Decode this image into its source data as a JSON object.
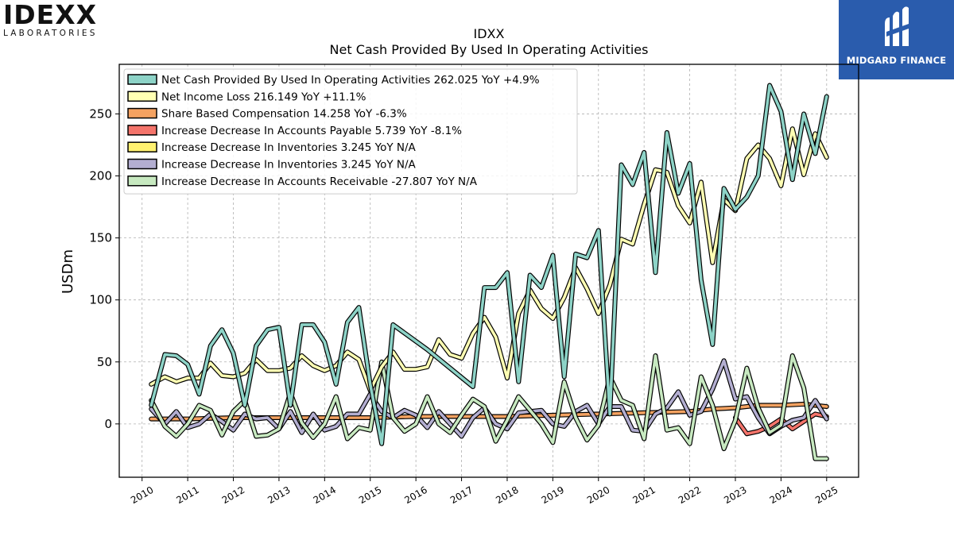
{
  "logos": {
    "left_top": "IDEXX",
    "left_bottom": "LABORATORIES",
    "right_brand": "MIDGARD FINANCE"
  },
  "chart_data": {
    "type": "line",
    "title": "IDXX",
    "subtitle": "Net Cash Provided By Used In Operating Activities",
    "xlabel": "",
    "ylabel": "USDm",
    "xlim": [
      2009.5,
      2025.7
    ],
    "ylim": [
      -43,
      290
    ],
    "x_ticks": [
      2010,
      2011,
      2012,
      2013,
      2014,
      2015,
      2016,
      2017,
      2018,
      2019,
      2020,
      2021,
      2022,
      2023,
      2024,
      2025
    ],
    "x_tick_labels": [
      "2010",
      "2011",
      "2012",
      "2013",
      "2014",
      "2015",
      "2016",
      "2017",
      "2018",
      "2019",
      "2020",
      "2021",
      "2022",
      "2023",
      "2024",
      "2025"
    ],
    "y_ticks": [
      0,
      50,
      100,
      150,
      200,
      250
    ],
    "y_tick_labels": [
      "0",
      "50",
      "100",
      "150",
      "200",
      "250"
    ],
    "grid": true,
    "legend_position": "top-left",
    "series": [
      {
        "name": "Net Cash Provided By Used In Operating Activities",
        "legend_label": "Net Cash Provided By Used In Operating Activities  262.025 YoY +4.9%",
        "color": "#8dd3c7",
        "points": [
          [
            2010.2,
            15
          ],
          [
            2010.5,
            56
          ],
          [
            2010.75,
            55
          ],
          [
            2011.0,
            48
          ],
          [
            2011.25,
            24
          ],
          [
            2011.5,
            63
          ],
          [
            2011.75,
            76
          ],
          [
            2012.0,
            57
          ],
          [
            2012.25,
            15
          ],
          [
            2012.5,
            63
          ],
          [
            2012.75,
            76
          ],
          [
            2013.0,
            78
          ],
          [
            2013.25,
            15
          ],
          [
            2013.5,
            80
          ],
          [
            2013.75,
            80
          ],
          [
            2014.0,
            66
          ],
          [
            2014.25,
            32
          ],
          [
            2014.5,
            82
          ],
          [
            2014.75,
            94
          ],
          [
            2015.0,
            32
          ],
          [
            2015.25,
            -16
          ],
          [
            2015.5,
            80
          ],
          [
            2016.25,
            60
          ],
          [
            2017.25,
            30
          ],
          [
            2017.5,
            110
          ],
          [
            2017.75,
            110
          ],
          [
            2018.0,
            122
          ],
          [
            2018.25,
            34
          ],
          [
            2018.5,
            120
          ],
          [
            2018.75,
            110
          ],
          [
            2019.0,
            136
          ],
          [
            2019.25,
            38
          ],
          [
            2019.5,
            137
          ],
          [
            2019.75,
            134
          ],
          [
            2020.0,
            156
          ],
          [
            2020.25,
            8
          ],
          [
            2020.5,
            209
          ],
          [
            2020.75,
            193
          ],
          [
            2021.0,
            219
          ],
          [
            2021.25,
            122
          ],
          [
            2021.5,
            235
          ],
          [
            2021.75,
            186
          ],
          [
            2022.0,
            210
          ],
          [
            2022.25,
            116
          ],
          [
            2022.5,
            64
          ],
          [
            2022.75,
            190
          ],
          [
            2023.0,
            173
          ],
          [
            2023.25,
            183
          ],
          [
            2023.5,
            200
          ],
          [
            2023.75,
            273
          ],
          [
            2024.0,
            252
          ],
          [
            2024.25,
            197
          ],
          [
            2024.5,
            250
          ],
          [
            2024.75,
            218
          ],
          [
            2025.0,
            264
          ]
        ]
      },
      {
        "name": "Net Income Loss",
        "legend_label": "Net Income Loss  216.149 YoY +11.1%",
        "color": "#ffffb3",
        "points": [
          [
            2010.2,
            32
          ],
          [
            2010.5,
            38
          ],
          [
            2010.75,
            34
          ],
          [
            2011.0,
            37
          ],
          [
            2011.25,
            37
          ],
          [
            2011.5,
            49
          ],
          [
            2011.75,
            39
          ],
          [
            2012.0,
            38
          ],
          [
            2012.25,
            41
          ],
          [
            2012.5,
            52
          ],
          [
            2012.75,
            43
          ],
          [
            2013.0,
            43
          ],
          [
            2013.25,
            45
          ],
          [
            2013.5,
            55
          ],
          [
            2013.75,
            47
          ],
          [
            2014.0,
            43
          ],
          [
            2014.25,
            47
          ],
          [
            2014.5,
            58
          ],
          [
            2014.75,
            52
          ],
          [
            2015.0,
            27
          ],
          [
            2015.25,
            46
          ],
          [
            2015.5,
            58
          ],
          [
            2015.75,
            44
          ],
          [
            2016.0,
            44
          ],
          [
            2016.25,
            46
          ],
          [
            2016.5,
            68
          ],
          [
            2016.75,
            56
          ],
          [
            2017.0,
            53
          ],
          [
            2017.25,
            73
          ],
          [
            2017.5,
            86
          ],
          [
            2017.75,
            70
          ],
          [
            2018.0,
            37
          ],
          [
            2018.25,
            89
          ],
          [
            2018.5,
            108
          ],
          [
            2018.75,
            93
          ],
          [
            2019.0,
            85
          ],
          [
            2019.25,
            102
          ],
          [
            2019.5,
            126
          ],
          [
            2019.75,
            109
          ],
          [
            2020.0,
            89
          ],
          [
            2020.25,
            112
          ],
          [
            2020.5,
            149
          ],
          [
            2020.75,
            145
          ],
          [
            2021.0,
            177
          ],
          [
            2021.25,
            205
          ],
          [
            2021.5,
            203
          ],
          [
            2021.75,
            176
          ],
          [
            2022.0,
            162
          ],
          [
            2022.25,
            195
          ],
          [
            2022.5,
            130
          ],
          [
            2022.75,
            181
          ],
          [
            2023.0,
            172
          ],
          [
            2023.25,
            214
          ],
          [
            2023.5,
            225
          ],
          [
            2023.75,
            214
          ],
          [
            2024.0,
            192
          ],
          [
            2024.25,
            238
          ],
          [
            2024.5,
            201
          ],
          [
            2024.75,
            234
          ],
          [
            2025.0,
            215
          ]
        ]
      },
      {
        "name": "Share Based Compensation",
        "legend_label": "Share Based Compensation  14.258 YoY -6.3%",
        "color": "#f4a261",
        "points": [
          [
            2010.2,
            4
          ],
          [
            2011.0,
            4
          ],
          [
            2012.0,
            5
          ],
          [
            2013.0,
            5
          ],
          [
            2014.0,
            5
          ],
          [
            2015.0,
            5
          ],
          [
            2016.0,
            6
          ],
          [
            2017.0,
            6
          ],
          [
            2018.0,
            6
          ],
          [
            2019.0,
            7
          ],
          [
            2020.0,
            8
          ],
          [
            2021.0,
            9
          ],
          [
            2022.0,
            10
          ],
          [
            2022.5,
            12
          ],
          [
            2023.0,
            13
          ],
          [
            2023.5,
            15
          ],
          [
            2024.0,
            15
          ],
          [
            2024.5,
            16
          ],
          [
            2025.0,
            14
          ]
        ]
      },
      {
        "name": "Increase Decrease In Accounts Payable",
        "legend_label": "Increase Decrease In Accounts Payable  5.739 YoY -8.1%",
        "color": "#f4746b",
        "points": [
          [
            2023.0,
            5
          ],
          [
            2023.25,
            -8
          ],
          [
            2023.5,
            -6
          ],
          [
            2023.75,
            -2
          ],
          [
            2024.0,
            4
          ],
          [
            2024.25,
            -4
          ],
          [
            2024.5,
            2
          ],
          [
            2024.75,
            8
          ],
          [
            2025.0,
            6
          ]
        ]
      },
      {
        "name": "Increase Decrease In Inventories",
        "legend_label": "Increase Decrease In Inventories  3.245 YoY N/A",
        "color": "#fff170",
        "points": []
      },
      {
        "name": "Increase Decrease In Inventories",
        "legend_label": "Increase Decrease In Inventories  3.245 YoY N/A",
        "color": "#b3aed1",
        "points": [
          [
            2010.2,
            12
          ],
          [
            2010.5,
            0
          ],
          [
            2010.75,
            10
          ],
          [
            2011.0,
            -3
          ],
          [
            2011.25,
            0
          ],
          [
            2011.5,
            8
          ],
          [
            2011.75,
            2
          ],
          [
            2012.0,
            -5
          ],
          [
            2012.25,
            8
          ],
          [
            2012.5,
            4
          ],
          [
            2012.75,
            5
          ],
          [
            2013.0,
            -4
          ],
          [
            2013.25,
            10
          ],
          [
            2013.5,
            -7
          ],
          [
            2013.75,
            8
          ],
          [
            2014.0,
            -5
          ],
          [
            2014.25,
            -2
          ],
          [
            2014.5,
            8
          ],
          [
            2014.75,
            8
          ],
          [
            2015.0,
            24
          ],
          [
            2015.25,
            10
          ],
          [
            2015.5,
            5
          ],
          [
            2015.75,
            11
          ],
          [
            2016.0,
            7
          ],
          [
            2016.25,
            -3
          ],
          [
            2016.5,
            10
          ],
          [
            2016.75,
            0
          ],
          [
            2017.0,
            -10
          ],
          [
            2017.25,
            5
          ],
          [
            2017.5,
            13
          ],
          [
            2017.75,
            0
          ],
          [
            2018.0,
            -4
          ],
          [
            2018.25,
            9
          ],
          [
            2018.5,
            10
          ],
          [
            2018.75,
            11
          ],
          [
            2019.0,
            0
          ],
          [
            2019.25,
            -2
          ],
          [
            2019.5,
            10
          ],
          [
            2019.75,
            15
          ],
          [
            2020.0,
            0
          ],
          [
            2020.25,
            14
          ],
          [
            2020.5,
            14
          ],
          [
            2020.75,
            -5
          ],
          [
            2021.0,
            -6
          ],
          [
            2021.25,
            8
          ],
          [
            2021.5,
            13
          ],
          [
            2021.75,
            26
          ],
          [
            2022.0,
            7
          ],
          [
            2022.25,
            10
          ],
          [
            2022.5,
            28
          ],
          [
            2022.75,
            51
          ],
          [
            2023.0,
            20
          ],
          [
            2023.25,
            22
          ],
          [
            2023.5,
            5
          ],
          [
            2023.75,
            -8
          ],
          [
            2024.0,
            -2
          ],
          [
            2024.25,
            3
          ],
          [
            2024.5,
            5
          ],
          [
            2024.75,
            19
          ],
          [
            2025.0,
            4
          ]
        ]
      },
      {
        "name": "Increase Decrease In Accounts Receivable",
        "legend_label": "Increase Decrease In Accounts Receivable  -27.807 YoY N/A",
        "color": "#c7e9c0",
        "points": [
          [
            2010.2,
            19
          ],
          [
            2010.5,
            -2
          ],
          [
            2010.75,
            -10
          ],
          [
            2011.0,
            0
          ],
          [
            2011.25,
            15
          ],
          [
            2011.5,
            11
          ],
          [
            2011.75,
            -9
          ],
          [
            2012.0,
            10
          ],
          [
            2012.25,
            19
          ],
          [
            2012.5,
            -10
          ],
          [
            2012.75,
            -9
          ],
          [
            2013.0,
            -4
          ],
          [
            2013.25,
            25
          ],
          [
            2013.5,
            1
          ],
          [
            2013.75,
            -11
          ],
          [
            2014.0,
            0
          ],
          [
            2014.25,
            22
          ],
          [
            2014.5,
            -12
          ],
          [
            2014.75,
            -3
          ],
          [
            2015.0,
            -5
          ],
          [
            2015.25,
            50
          ],
          [
            2015.5,
            5
          ],
          [
            2015.75,
            -6
          ],
          [
            2016.0,
            0
          ],
          [
            2016.25,
            22
          ],
          [
            2016.5,
            0
          ],
          [
            2016.75,
            -7
          ],
          [
            2017.0,
            7
          ],
          [
            2017.25,
            20
          ],
          [
            2017.5,
            14
          ],
          [
            2017.75,
            -14
          ],
          [
            2018.0,
            3
          ],
          [
            2018.25,
            22
          ],
          [
            2018.5,
            11
          ],
          [
            2018.75,
            0
          ],
          [
            2019.0,
            -15
          ],
          [
            2019.25,
            34
          ],
          [
            2019.5,
            5
          ],
          [
            2019.75,
            -13
          ],
          [
            2020.0,
            -1
          ],
          [
            2020.25,
            38
          ],
          [
            2020.5,
            19
          ],
          [
            2020.75,
            15
          ],
          [
            2021.0,
            -12
          ],
          [
            2021.25,
            55
          ],
          [
            2021.5,
            -5
          ],
          [
            2021.75,
            -3
          ],
          [
            2022.0,
            -16
          ],
          [
            2022.25,
            38
          ],
          [
            2022.5,
            15
          ],
          [
            2022.75,
            -20
          ],
          [
            2023.0,
            3
          ],
          [
            2023.25,
            45
          ],
          [
            2023.5,
            13
          ],
          [
            2023.75,
            -7
          ],
          [
            2024.0,
            -1
          ],
          [
            2024.25,
            55
          ],
          [
            2024.5,
            29
          ],
          [
            2024.75,
            -28
          ],
          [
            2025.0,
            -28
          ]
        ]
      }
    ]
  }
}
